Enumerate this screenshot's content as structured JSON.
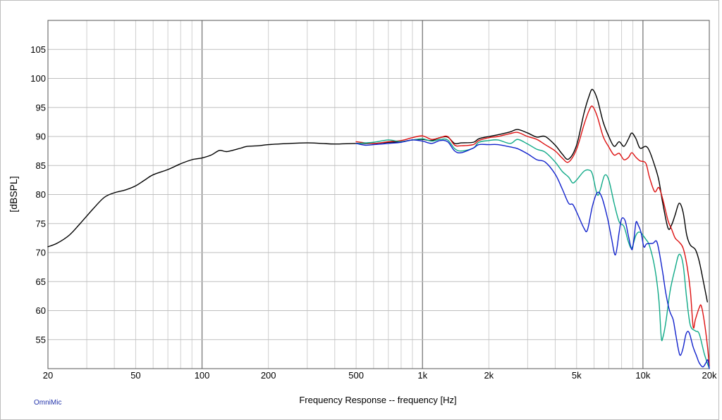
{
  "chart_data": {
    "type": "line",
    "xlabel": "Frequency Response -- frequency [Hz]",
    "ylabel": "[dBSPL]",
    "brand": "OmniMic",
    "x_scale": "log",
    "xlim": [
      20,
      20000
    ],
    "ylim": [
      50,
      110
    ],
    "x_ticks": [
      {
        "value": 20,
        "label": "20"
      },
      {
        "value": 50,
        "label": "50"
      },
      {
        "value": 100,
        "label": "100"
      },
      {
        "value": 200,
        "label": "200"
      },
      {
        "value": 500,
        "label": "500"
      },
      {
        "value": 1000,
        "label": "1k"
      },
      {
        "value": 2000,
        "label": "2k"
      },
      {
        "value": 5000,
        "label": "5k"
      },
      {
        "value": 10000,
        "label": "10k"
      },
      {
        "value": 20000,
        "label": "20k"
      }
    ],
    "y_ticks": [
      55,
      60,
      65,
      70,
      75,
      80,
      85,
      90,
      95,
      100,
      105
    ],
    "grid": true,
    "series": [
      {
        "color": "#000000",
        "points": [
          [
            20,
            71
          ],
          [
            22,
            71.6
          ],
          [
            25,
            73
          ],
          [
            28,
            75
          ],
          [
            32,
            77.5
          ],
          [
            36,
            79.5
          ],
          [
            40,
            80.3
          ],
          [
            45,
            80.8
          ],
          [
            50,
            81.5
          ],
          [
            55,
            82.5
          ],
          [
            60,
            83.4
          ],
          [
            70,
            84.3
          ],
          [
            80,
            85.3
          ],
          [
            90,
            86
          ],
          [
            100,
            86.3
          ],
          [
            110,
            86.8
          ],
          [
            120,
            87.6
          ],
          [
            130,
            87.4
          ],
          [
            150,
            88
          ],
          [
            160,
            88.3
          ],
          [
            180,
            88.4
          ],
          [
            200,
            88.6
          ],
          [
            250,
            88.8
          ],
          [
            300,
            88.9
          ],
          [
            350,
            88.8
          ],
          [
            400,
            88.7
          ],
          [
            500,
            88.8
          ],
          [
            600,
            88.8
          ],
          [
            700,
            89
          ],
          [
            800,
            89.1
          ],
          [
            900,
            89.4
          ],
          [
            1000,
            89.5
          ],
          [
            1100,
            89.3
          ],
          [
            1200,
            89.8
          ],
          [
            1300,
            89.9
          ],
          [
            1400,
            88.8
          ],
          [
            1500,
            88.9
          ],
          [
            1700,
            89
          ],
          [
            1800,
            89.6
          ],
          [
            2000,
            90
          ],
          [
            2200,
            90.3
          ],
          [
            2500,
            90.8
          ],
          [
            2700,
            91.2
          ],
          [
            3000,
            90.6
          ],
          [
            3300,
            89.9
          ],
          [
            3600,
            90
          ],
          [
            4000,
            88.5
          ],
          [
            4300,
            87
          ],
          [
            4600,
            86.1
          ],
          [
            5000,
            88.5
          ],
          [
            5400,
            94
          ],
          [
            5700,
            97
          ],
          [
            5900,
            98.1
          ],
          [
            6200,
            96.5
          ],
          [
            6600,
            92.5
          ],
          [
            7000,
            90
          ],
          [
            7400,
            88.3
          ],
          [
            7800,
            89.1
          ],
          [
            8200,
            88.3
          ],
          [
            8600,
            89.6
          ],
          [
            8900,
            90.6
          ],
          [
            9300,
            89.6
          ],
          [
            9700,
            88
          ],
          [
            10300,
            88.3
          ],
          [
            10700,
            87.5
          ],
          [
            11300,
            85
          ],
          [
            11800,
            82.5
          ],
          [
            12300,
            78.5
          ],
          [
            13000,
            74.2
          ],
          [
            13500,
            74.8
          ],
          [
            14000,
            76.5
          ],
          [
            14600,
            78.5
          ],
          [
            15200,
            77
          ],
          [
            15800,
            73
          ],
          [
            16400,
            71.3
          ],
          [
            17300,
            70.5
          ],
          [
            18000,
            68.5
          ],
          [
            18800,
            65
          ],
          [
            19600,
            61.5
          ]
        ]
      },
      {
        "color": "#dd1111",
        "points": [
          [
            500,
            89.1
          ],
          [
            600,
            88.8
          ],
          [
            700,
            89.1
          ],
          [
            800,
            89.3
          ],
          [
            900,
            89.8
          ],
          [
            1000,
            90.1
          ],
          [
            1100,
            89.5
          ],
          [
            1200,
            89.8
          ],
          [
            1300,
            90
          ],
          [
            1400,
            88.5
          ],
          [
            1500,
            88.4
          ],
          [
            1700,
            88.6
          ],
          [
            1800,
            89.3
          ],
          [
            2000,
            89.8
          ],
          [
            2200,
            90
          ],
          [
            2500,
            90.5
          ],
          [
            2700,
            90.7
          ],
          [
            3000,
            90
          ],
          [
            3300,
            89.5
          ],
          [
            3600,
            88.6
          ],
          [
            4000,
            87.5
          ],
          [
            4300,
            86.3
          ],
          [
            4600,
            85.6
          ],
          [
            5000,
            87.8
          ],
          [
            5400,
            92
          ],
          [
            5700,
            94.5
          ],
          [
            5900,
            95.2
          ],
          [
            6200,
            93.5
          ],
          [
            6600,
            90
          ],
          [
            7000,
            88.2
          ],
          [
            7400,
            86.8
          ],
          [
            7800,
            87.1
          ],
          [
            8200,
            86
          ],
          [
            8600,
            86.4
          ],
          [
            8900,
            87.2
          ],
          [
            9300,
            86.4
          ],
          [
            9700,
            85.8
          ],
          [
            10300,
            85.4
          ],
          [
            10700,
            83
          ],
          [
            11300,
            80.5
          ],
          [
            11800,
            81.2
          ],
          [
            12300,
            79.2
          ],
          [
            13000,
            75.5
          ],
          [
            13500,
            74
          ],
          [
            14000,
            72.5
          ],
          [
            14600,
            71.8
          ],
          [
            15200,
            70.8
          ],
          [
            15800,
            68
          ],
          [
            16400,
            63.5
          ],
          [
            16900,
            57.2
          ],
          [
            17300,
            58.5
          ],
          [
            18000,
            60.5
          ],
          [
            18400,
            60.8
          ],
          [
            19000,
            58
          ],
          [
            19600,
            54
          ],
          [
            20000,
            50.5
          ]
        ]
      },
      {
        "color": "#11aa88",
        "points": [
          [
            500,
            88.8
          ],
          [
            600,
            89
          ],
          [
            700,
            89.4
          ],
          [
            800,
            89.1
          ],
          [
            900,
            89.4
          ],
          [
            1000,
            89.6
          ],
          [
            1100,
            89.2
          ],
          [
            1200,
            89.5
          ],
          [
            1300,
            89.4
          ],
          [
            1400,
            87.9
          ],
          [
            1500,
            87.5
          ],
          [
            1700,
            88
          ],
          [
            1800,
            89
          ],
          [
            2000,
            89.3
          ],
          [
            2200,
            89.4
          ],
          [
            2500,
            88.8
          ],
          [
            2700,
            89.5
          ],
          [
            3000,
            88.7
          ],
          [
            3300,
            87.8
          ],
          [
            3600,
            87.3
          ],
          [
            4000,
            85.6
          ],
          [
            4300,
            84
          ],
          [
            4600,
            83
          ],
          [
            4800,
            82
          ],
          [
            5000,
            82.5
          ],
          [
            5400,
            84
          ],
          [
            5700,
            84.2
          ],
          [
            5900,
            83.5
          ],
          [
            6200,
            80
          ],
          [
            6400,
            80.8
          ],
          [
            6700,
            83.3
          ],
          [
            7000,
            82.5
          ],
          [
            7400,
            78.5
          ],
          [
            7800,
            75.3
          ],
          [
            8200,
            74.5
          ],
          [
            8600,
            71.8
          ],
          [
            8900,
            70.8
          ],
          [
            9300,
            73
          ],
          [
            9700,
            73.5
          ],
          [
            10300,
            72.3
          ],
          [
            10700,
            71.2
          ],
          [
            11300,
            67.5
          ],
          [
            11800,
            62
          ],
          [
            12100,
            55.5
          ],
          [
            12300,
            55.3
          ],
          [
            12700,
            58
          ],
          [
            13300,
            63.5
          ],
          [
            14000,
            67.3
          ],
          [
            14600,
            69.7
          ],
          [
            15200,
            68
          ],
          [
            15800,
            62
          ],
          [
            16400,
            57.5
          ],
          [
            17300,
            56.5
          ],
          [
            18000,
            56
          ],
          [
            19000,
            52.5
          ],
          [
            20000,
            50
          ]
        ]
      },
      {
        "color": "#1122cc",
        "points": [
          [
            500,
            88.8
          ],
          [
            550,
            88.5
          ],
          [
            600,
            88.6
          ],
          [
            700,
            88.8
          ],
          [
            800,
            89
          ],
          [
            900,
            89.4
          ],
          [
            1000,
            89.2
          ],
          [
            1100,
            88.8
          ],
          [
            1200,
            89.3
          ],
          [
            1300,
            89.1
          ],
          [
            1400,
            87.5
          ],
          [
            1500,
            87.2
          ],
          [
            1700,
            88
          ],
          [
            1800,
            88.6
          ],
          [
            2000,
            88.6
          ],
          [
            2200,
            88.6
          ],
          [
            2500,
            88.2
          ],
          [
            2700,
            87.9
          ],
          [
            3000,
            87
          ],
          [
            3300,
            86
          ],
          [
            3600,
            85.6
          ],
          [
            4000,
            83.5
          ],
          [
            4300,
            81
          ],
          [
            4600,
            78.5
          ],
          [
            4800,
            78.3
          ],
          [
            5000,
            77
          ],
          [
            5400,
            74.2
          ],
          [
            5600,
            73.9
          ],
          [
            5900,
            78
          ],
          [
            6200,
            80.3
          ],
          [
            6500,
            79.6
          ],
          [
            6900,
            76
          ],
          [
            7200,
            72.5
          ],
          [
            7500,
            69.6
          ],
          [
            7800,
            73.5
          ],
          [
            8000,
            75.8
          ],
          [
            8300,
            75.5
          ],
          [
            8600,
            72.8
          ],
          [
            8900,
            70.5
          ],
          [
            9100,
            72.3
          ],
          [
            9300,
            75.2
          ],
          [
            9500,
            74.8
          ],
          [
            9800,
            73.5
          ],
          [
            10100,
            71
          ],
          [
            10400,
            71.5
          ],
          [
            11100,
            71.6
          ],
          [
            11500,
            72
          ],
          [
            11800,
            70.5
          ],
          [
            12300,
            66.5
          ],
          [
            12700,
            63
          ],
          [
            13200,
            60
          ],
          [
            13700,
            58.5
          ],
          [
            14000,
            56.5
          ],
          [
            14500,
            53.2
          ],
          [
            14800,
            52.3
          ],
          [
            15200,
            53.5
          ],
          [
            15700,
            56
          ],
          [
            16200,
            56.2
          ],
          [
            16900,
            53.7
          ],
          [
            17500,
            52.2
          ],
          [
            18000,
            51
          ],
          [
            18700,
            50.3
          ],
          [
            19300,
            51
          ],
          [
            19700,
            51.5
          ],
          [
            20000,
            50
          ]
        ]
      }
    ]
  }
}
